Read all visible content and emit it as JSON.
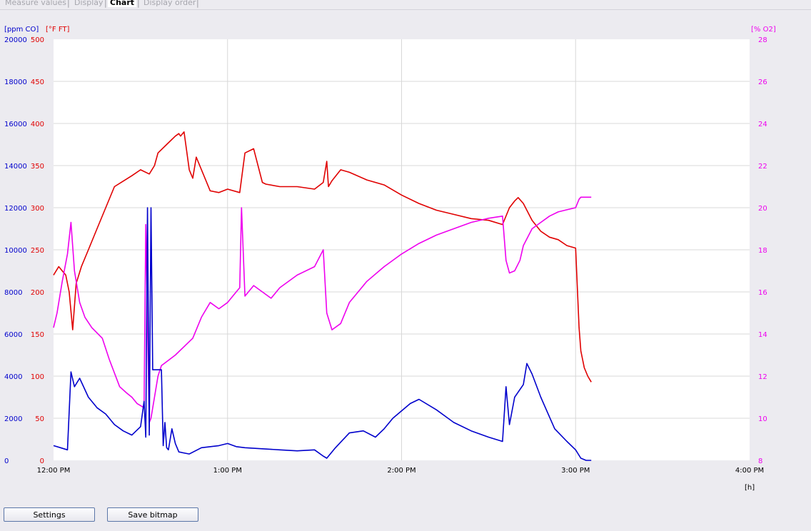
{
  "tabs": [
    {
      "label": "Measure values",
      "active": false
    },
    {
      "label": "Display",
      "active": false
    },
    {
      "label": "Chart",
      "active": true
    },
    {
      "label": "Display order",
      "active": false
    }
  ],
  "buttons": {
    "settings": "Settings",
    "save_bitmap": "Save bitmap"
  },
  "colors": {
    "co": "#0000cc",
    "temp": "#e00000",
    "o2": "#ee00ee",
    "grid": "#d8d8d8"
  },
  "chart_data": {
    "type": "line",
    "grid": true,
    "xlabel": "[h]",
    "x_ticks": [
      "12:00 PM",
      "1:00 PM",
      "2:00 PM",
      "3:00 PM",
      "4:00 PM"
    ],
    "xlim": [
      0,
      4
    ],
    "axes": {
      "co": {
        "label": "[ppm CO]",
        "side": "left",
        "ylim": [
          0,
          20000
        ],
        "ticks": [
          "20000",
          "18000",
          "16000",
          "14000",
          "12000",
          "10000",
          "8000",
          "6000",
          "4000",
          "2000",
          "0"
        ]
      },
      "temp": {
        "label": "[°F FT]",
        "side": "left",
        "ylim": [
          0,
          500
        ],
        "ticks": [
          "500",
          "450",
          "400",
          "350",
          "300",
          "250",
          "200",
          "150",
          "100",
          "50",
          "0"
        ]
      },
      "o2": {
        "label": "[% O2]",
        "side": "right",
        "ylim": [
          8,
          28
        ],
        "ticks": [
          "28",
          "26",
          "24",
          "22",
          "20",
          "18",
          "16",
          "14",
          "12",
          "10",
          "8"
        ]
      }
    },
    "series": [
      {
        "name": "[°F FT]",
        "axis": "temp",
        "x": [
          0.0,
          0.03,
          0.07,
          0.09,
          0.11,
          0.13,
          0.16,
          0.2,
          0.25,
          0.3,
          0.35,
          0.45,
          0.5,
          0.55,
          0.58,
          0.6,
          0.65,
          0.7,
          0.72,
          0.73,
          0.75,
          0.78,
          0.8,
          0.82,
          0.9,
          0.95,
          1.0,
          1.07,
          1.1,
          1.15,
          1.2,
          1.22,
          1.3,
          1.4,
          1.5,
          1.55,
          1.57,
          1.58,
          1.6,
          1.65,
          1.7,
          1.8,
          1.9,
          2.0,
          2.1,
          2.2,
          2.3,
          2.4,
          2.5,
          2.58,
          2.62,
          2.65,
          2.67,
          2.7,
          2.75,
          2.8,
          2.85,
          2.9,
          2.95,
          3.0,
          3.02,
          3.03,
          3.05,
          3.07,
          3.09
        ],
        "y": [
          220,
          230,
          220,
          200,
          155,
          210,
          230,
          250,
          275,
          300,
          325,
          338,
          345,
          340,
          350,
          365,
          375,
          385,
          388,
          385,
          390,
          345,
          335,
          360,
          320,
          318,
          322,
          318,
          365,
          370,
          330,
          328,
          325,
          325,
          322,
          330,
          355,
          325,
          332,
          345,
          342,
          333,
          327,
          315,
          305,
          297,
          292,
          287,
          285,
          280,
          300,
          308,
          312,
          305,
          285,
          272,
          265,
          262,
          255,
          252,
          158,
          130,
          110,
          100,
          93
        ]
      },
      {
        "name": "[% O2]",
        "axis": "o2",
        "x": [
          0.0,
          0.02,
          0.05,
          0.08,
          0.1,
          0.12,
          0.15,
          0.18,
          0.22,
          0.28,
          0.32,
          0.38,
          0.42,
          0.45,
          0.48,
          0.5,
          0.52,
          0.53,
          0.55,
          0.56,
          0.6,
          0.62,
          0.7,
          0.8,
          0.85,
          0.9,
          0.95,
          1.0,
          1.05,
          1.07,
          1.08,
          1.1,
          1.15,
          1.2,
          1.25,
          1.3,
          1.4,
          1.5,
          1.55,
          1.57,
          1.6,
          1.65,
          1.7,
          1.8,
          1.9,
          2.0,
          2.1,
          2.2,
          2.3,
          2.4,
          2.5,
          2.58,
          2.6,
          2.62,
          2.65,
          2.68,
          2.7,
          2.75,
          2.8,
          2.85,
          2.9,
          2.95,
          3.0,
          3.02,
          3.03,
          3.05,
          3.09
        ],
        "y": [
          14.3,
          15,
          16.5,
          17.8,
          19.3,
          17,
          15.5,
          14.8,
          14.3,
          13.8,
          12.8,
          11.5,
          11.2,
          11,
          10.7,
          10.6,
          10.5,
          19.2,
          9.8,
          10,
          12,
          12.5,
          13,
          13.8,
          14.8,
          15.5,
          15.2,
          15.5,
          16,
          16.2,
          20,
          15.8,
          16.3,
          16,
          15.7,
          16.2,
          16.8,
          17.2,
          18,
          15,
          14.2,
          14.5,
          15.5,
          16.5,
          17.2,
          17.8,
          18.3,
          18.7,
          19,
          19.3,
          19.5,
          19.6,
          17.5,
          16.9,
          17,
          17.5,
          18.2,
          19,
          19.3,
          19.6,
          19.8,
          19.9,
          20,
          20.4,
          20.5,
          20.5,
          20.5
        ]
      },
      {
        "name": "[ppm CO]",
        "axis": "co",
        "x": [
          0.0,
          0.04,
          0.08,
          0.1,
          0.12,
          0.15,
          0.2,
          0.25,
          0.3,
          0.35,
          0.4,
          0.45,
          0.5,
          0.52,
          0.53,
          0.54,
          0.55,
          0.56,
          0.57,
          0.58,
          0.6,
          0.62,
          0.63,
          0.64,
          0.65,
          0.66,
          0.68,
          0.7,
          0.72,
          0.78,
          0.85,
          0.95,
          1.0,
          1.05,
          1.1,
          1.2,
          1.3,
          1.4,
          1.5,
          1.55,
          1.57,
          1.62,
          1.7,
          1.78,
          1.85,
          1.9,
          1.95,
          2.05,
          2.1,
          2.2,
          2.25,
          2.3,
          2.4,
          2.5,
          2.58,
          2.6,
          2.62,
          2.65,
          2.7,
          2.72,
          2.75,
          2.8,
          2.88,
          2.95,
          3.0,
          3.03,
          3.06,
          3.09
        ],
        "y": [
          700,
          600,
          500,
          4200,
          3500,
          3900,
          3000,
          2500,
          2200,
          1700,
          1400,
          1200,
          1600,
          2800,
          1100,
          12000,
          1200,
          12000,
          4300,
          4300,
          4300,
          4300,
          700,
          1800,
          600,
          500,
          1500,
          800,
          400,
          300,
          600,
          700,
          800,
          650,
          600,
          550,
          500,
          450,
          500,
          200,
          100,
          600,
          1300,
          1400,
          1100,
          1500,
          2000,
          2700,
          2900,
          2400,
          2100,
          1800,
          1400,
          1100,
          900,
          3500,
          1700,
          3000,
          3600,
          4600,
          4100,
          3000,
          1500,
          900,
          500,
          100,
          0,
          0
        ]
      }
    ]
  }
}
